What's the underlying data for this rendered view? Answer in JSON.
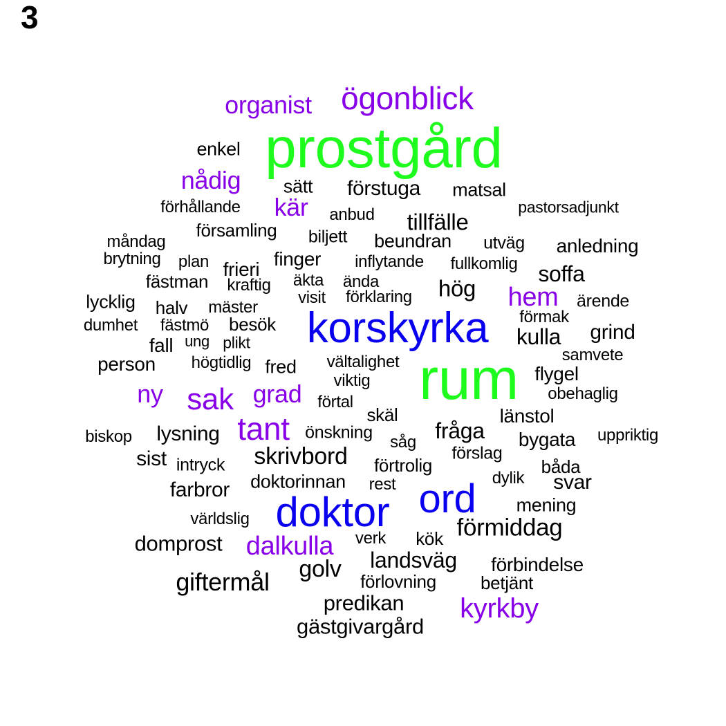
{
  "panel_label": "3",
  "colors": {
    "largest": "#1efc1e",
    "large": "#0a00f0",
    "medium": "#8800e8",
    "small": "#000000"
  },
  "words": [
    {
      "text": "prostgård",
      "tier": "largest"
    },
    {
      "text": "rum",
      "tier": "largest"
    },
    {
      "text": "korskyrka",
      "tier": "large"
    },
    {
      "text": "doktor",
      "tier": "large"
    },
    {
      "text": "ord",
      "tier": "large"
    },
    {
      "text": "ögonblick",
      "tier": "medium"
    },
    {
      "text": "organist",
      "tier": "medium"
    },
    {
      "text": "nådig",
      "tier": "medium"
    },
    {
      "text": "kär",
      "tier": "medium"
    },
    {
      "text": "hem",
      "tier": "medium"
    },
    {
      "text": "ny",
      "tier": "medium"
    },
    {
      "text": "sak",
      "tier": "medium"
    },
    {
      "text": "grad",
      "tier": "medium"
    },
    {
      "text": "tant",
      "tier": "medium"
    },
    {
      "text": "dalkulla",
      "tier": "medium"
    },
    {
      "text": "kyrkby",
      "tier": "medium"
    },
    {
      "text": "enkel",
      "tier": "small"
    },
    {
      "text": "sätt",
      "tier": "small"
    },
    {
      "text": "förstuga",
      "tier": "small"
    },
    {
      "text": "matsal",
      "tier": "small"
    },
    {
      "text": "förhållande",
      "tier": "small"
    },
    {
      "text": "anbud",
      "tier": "small"
    },
    {
      "text": "pastorsadjunkt",
      "tier": "small"
    },
    {
      "text": "tillfälle",
      "tier": "small"
    },
    {
      "text": "församling",
      "tier": "small"
    },
    {
      "text": "biljett",
      "tier": "small"
    },
    {
      "text": "måndag",
      "tier": "small"
    },
    {
      "text": "beundran",
      "tier": "small"
    },
    {
      "text": "utväg",
      "tier": "small"
    },
    {
      "text": "anledning",
      "tier": "small"
    },
    {
      "text": "brytning",
      "tier": "small"
    },
    {
      "text": "plan",
      "tier": "small"
    },
    {
      "text": "frieri",
      "tier": "small"
    },
    {
      "text": "finger",
      "tier": "small"
    },
    {
      "text": "inflytande",
      "tier": "small"
    },
    {
      "text": "fullkomlig",
      "tier": "small"
    },
    {
      "text": "soffa",
      "tier": "small"
    },
    {
      "text": "fästman",
      "tier": "small"
    },
    {
      "text": "kraftig",
      "tier": "small"
    },
    {
      "text": "äkta",
      "tier": "small"
    },
    {
      "text": "ända",
      "tier": "small"
    },
    {
      "text": "hög",
      "tier": "small"
    },
    {
      "text": "lycklig",
      "tier": "small"
    },
    {
      "text": "halv",
      "tier": "small"
    },
    {
      "text": "mäster",
      "tier": "small"
    },
    {
      "text": "visit",
      "tier": "small"
    },
    {
      "text": "förklaring",
      "tier": "small"
    },
    {
      "text": "ärende",
      "tier": "small"
    },
    {
      "text": "dumhet",
      "tier": "small"
    },
    {
      "text": "fästmö",
      "tier": "small"
    },
    {
      "text": "besök",
      "tier": "small"
    },
    {
      "text": "förmak",
      "tier": "small"
    },
    {
      "text": "kulla",
      "tier": "small"
    },
    {
      "text": "grind",
      "tier": "small"
    },
    {
      "text": "fall",
      "tier": "small"
    },
    {
      "text": "ung",
      "tier": "small"
    },
    {
      "text": "plikt",
      "tier": "small"
    },
    {
      "text": "samvete",
      "tier": "small"
    },
    {
      "text": "person",
      "tier": "small"
    },
    {
      "text": "högtidlig",
      "tier": "small"
    },
    {
      "text": "fred",
      "tier": "small"
    },
    {
      "text": "vältalighet",
      "tier": "small"
    },
    {
      "text": "flygel",
      "tier": "small"
    },
    {
      "text": "viktig",
      "tier": "small"
    },
    {
      "text": "obehaglig",
      "tier": "small"
    },
    {
      "text": "förtal",
      "tier": "small"
    },
    {
      "text": "skäl",
      "tier": "small"
    },
    {
      "text": "länstol",
      "tier": "small"
    },
    {
      "text": "biskop",
      "tier": "small"
    },
    {
      "text": "lysning",
      "tier": "small"
    },
    {
      "text": "önskning",
      "tier": "small"
    },
    {
      "text": "fråga",
      "tier": "small"
    },
    {
      "text": "såg",
      "tier": "small"
    },
    {
      "text": "bygata",
      "tier": "small"
    },
    {
      "text": "uppriktig",
      "tier": "small"
    },
    {
      "text": "sist",
      "tier": "small"
    },
    {
      "text": "intryck",
      "tier": "small"
    },
    {
      "text": "skrivbord",
      "tier": "small"
    },
    {
      "text": "förtrolig",
      "tier": "small"
    },
    {
      "text": "förslag",
      "tier": "small"
    },
    {
      "text": "båda",
      "tier": "small"
    },
    {
      "text": "farbror",
      "tier": "small"
    },
    {
      "text": "doktorinnan",
      "tier": "small"
    },
    {
      "text": "rest",
      "tier": "small"
    },
    {
      "text": "dylik",
      "tier": "small"
    },
    {
      "text": "svar",
      "tier": "small"
    },
    {
      "text": "mening",
      "tier": "small"
    },
    {
      "text": "världslig",
      "tier": "small"
    },
    {
      "text": "förmiddag",
      "tier": "small"
    },
    {
      "text": "domprost",
      "tier": "small"
    },
    {
      "text": "verk",
      "tier": "small"
    },
    {
      "text": "kök",
      "tier": "small"
    },
    {
      "text": "landsväg",
      "tier": "small"
    },
    {
      "text": "förbindelse",
      "tier": "small"
    },
    {
      "text": "giftermål",
      "tier": "small"
    },
    {
      "text": "golv",
      "tier": "small"
    },
    {
      "text": "förlovning",
      "tier": "small"
    },
    {
      "text": "betjänt",
      "tier": "small"
    },
    {
      "text": "predikan",
      "tier": "small"
    },
    {
      "text": "gästgivargård",
      "tier": "small"
    }
  ]
}
